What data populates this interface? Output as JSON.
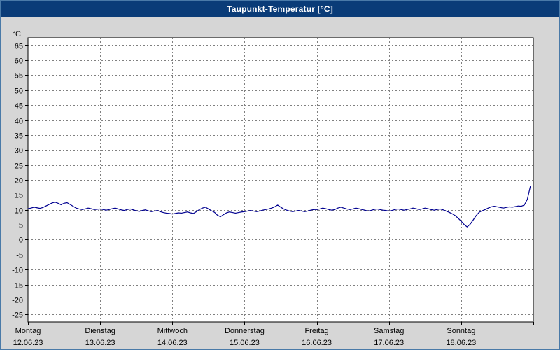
{
  "window": {
    "title": "Taupunkt-Temperatur [°C]"
  },
  "chart_data": {
    "type": "line",
    "title": "Taupunkt-Temperatur [°C]",
    "unit_label": "°C",
    "ylim": [
      -27.5,
      67.5
    ],
    "ytick_step": 5,
    "yticks": [
      65,
      60,
      55,
      50,
      45,
      40,
      35,
      30,
      25,
      20,
      15,
      10,
      5,
      0,
      -5,
      -10,
      -15,
      -20,
      -25
    ],
    "grid": true,
    "legend": "none",
    "x_days": [
      {
        "name": "Montag",
        "date": "12.06.23"
      },
      {
        "name": "Dienstag",
        "date": "13.06.23"
      },
      {
        "name": "Mittwoch",
        "date": "14.06.23"
      },
      {
        "name": "Donnerstag",
        "date": "15.06.23"
      },
      {
        "name": "Freitag",
        "date": "16.06.23"
      },
      {
        "name": "Samstag",
        "date": "17.06.23"
      },
      {
        "name": "Sonntag",
        "date": "18.06.23"
      }
    ],
    "hours_per_day": 24,
    "series": [
      {
        "name": "Taupunkt",
        "color": "#000090",
        "values": [
          10.4,
          10.6,
          10.9,
          10.7,
          10.5,
          10.8,
          11.3,
          11.8,
          12.3,
          12.6,
          12.2,
          11.7,
          12.2,
          12.4,
          11.8,
          11.2,
          10.6,
          10.3,
          10.1,
          10.3,
          10.6,
          10.4,
          10.1,
          10.2,
          10.3,
          10.1,
          9.9,
          10.1,
          10.4,
          10.6,
          10.3,
          10.0,
          9.8,
          10.1,
          10.3,
          10.0,
          9.7,
          9.5,
          9.8,
          10.0,
          9.7,
          9.4,
          9.6,
          9.8,
          9.4,
          9.1,
          8.9,
          8.8,
          8.6,
          8.8,
          9.0,
          8.9,
          9.1,
          9.3,
          9.0,
          8.8,
          9.4,
          10.1,
          10.6,
          10.9,
          10.3,
          9.7,
          9.2,
          8.2,
          7.7,
          8.4,
          9.0,
          9.3,
          9.1,
          8.9,
          9.1,
          9.3,
          9.4,
          9.6,
          9.8,
          9.6,
          9.4,
          9.6,
          9.9,
          10.1,
          10.3,
          10.6,
          11.0,
          11.6,
          10.9,
          10.3,
          9.9,
          9.6,
          9.4,
          9.6,
          9.8,
          9.6,
          9.4,
          9.6,
          9.9,
          10.1,
          10.1,
          10.3,
          10.6,
          10.4,
          10.1,
          9.9,
          10.1,
          10.6,
          10.9,
          10.6,
          10.3,
          10.1,
          10.3,
          10.6,
          10.4,
          10.1,
          9.9,
          9.6,
          9.8,
          10.1,
          10.3,
          10.1,
          9.9,
          9.8,
          9.6,
          9.8,
          10.1,
          10.3,
          10.1,
          9.9,
          10.1,
          10.3,
          10.6,
          10.4,
          10.1,
          10.3,
          10.6,
          10.4,
          10.1,
          9.9,
          10.1,
          10.3,
          10.0,
          9.6,
          9.2,
          8.7,
          8.1,
          7.2,
          6.2,
          5.1,
          4.3,
          5.2,
          6.6,
          8.1,
          9.2,
          9.7,
          10.1,
          10.6,
          11.0,
          11.2,
          11.0,
          10.8,
          10.6,
          10.8,
          11.0,
          10.9,
          11.1,
          11.3,
          11.2,
          11.6,
          13.5,
          17.8
        ]
      }
    ],
    "colors": {
      "title_bar": "#0a3c78",
      "outer_border": "#4a7aa8",
      "background": "#d6d6d6",
      "plot_background": "#ffffff",
      "grid": "#808080",
      "axis": "#000000",
      "text": "#000000"
    }
  }
}
